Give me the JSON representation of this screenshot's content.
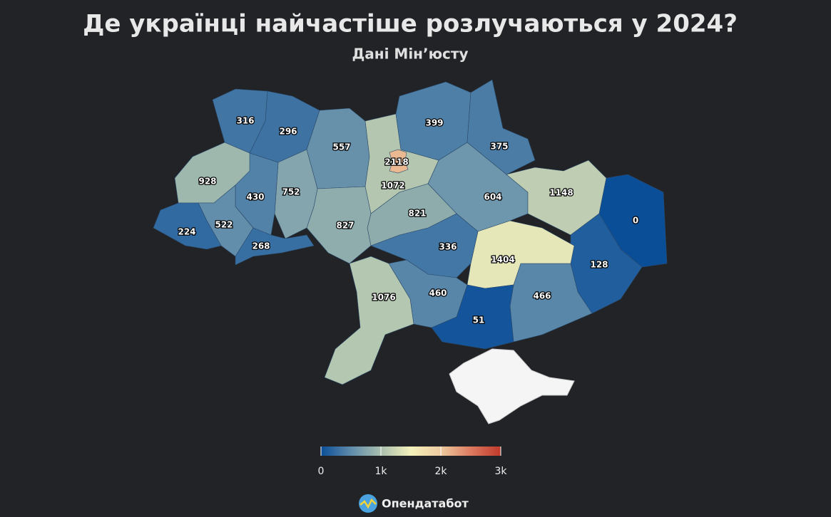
{
  "title": "Де українці найчастіше розлучаються у 2024?",
  "subtitle": "Дані Мін’юсту",
  "regions": [
    {
      "value": 316
    },
    {
      "value": 296
    },
    {
      "value": 557
    },
    {
      "value": 1072
    },
    {
      "value": 2118
    },
    {
      "value": 399
    },
    {
      "value": 375
    },
    {
      "value": 604
    },
    {
      "value": 1148
    },
    {
      "value": 0
    },
    {
      "value": 128
    },
    {
      "value": 466
    },
    {
      "value": 1404
    },
    {
      "value": 51
    },
    {
      "value": 336
    },
    {
      "value": 460
    },
    {
      "value": 1076
    },
    {
      "value": 821
    },
    {
      "value": 827
    },
    {
      "value": 752
    },
    {
      "value": 430
    },
    {
      "value": 928
    },
    {
      "value": 522
    },
    {
      "value": 224
    },
    {
      "value": 268
    }
  ],
  "color_scale": {
    "range": [
      0,
      3000
    ],
    "colors": [
      "#0b4e98",
      "#5f8bab",
      "#a9bfae",
      "#f4f1bb",
      "#eecba0",
      "#dc7a5f",
      "#c0392b"
    ],
    "ticks": [
      0,
      {
        "value": 1000,
        "label": "1k"
      },
      {
        "value": 2000,
        "label": "2k"
      },
      {
        "value": 3000,
        "label": "3k"
      }
    ]
  },
  "source": "Опендатабот"
}
